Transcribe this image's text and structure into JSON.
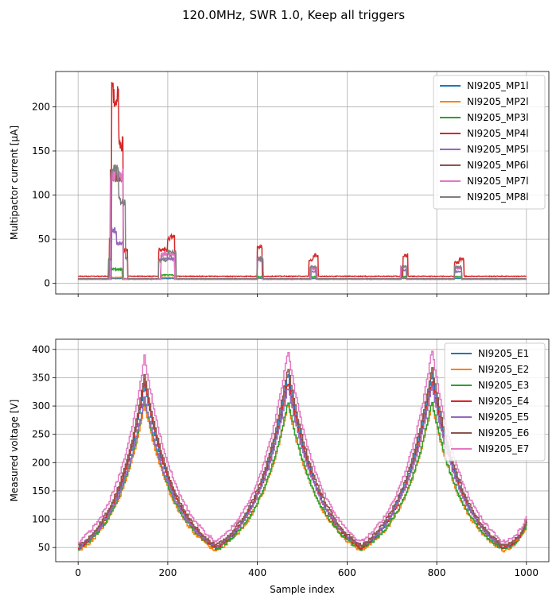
{
  "figure": {
    "title": "120.0MHz, SWR 1.0, Keep all triggers"
  },
  "chart_data": [
    {
      "type": "line",
      "xlabel": "",
      "ylabel": "Multipactor current [$\\mu$A]",
      "ylabel_display": "Multipactor current [μA]",
      "xlim": [
        -50,
        1050
      ],
      "ylim": [
        -12,
        240
      ],
      "xticks": [
        0,
        200,
        400,
        600,
        800,
        1000
      ],
      "xtick_labels_visible": false,
      "yticks": [
        0,
        50,
        100,
        150,
        200
      ],
      "grid": true,
      "legend_position": "top-right",
      "series": [
        {
          "name": "NI9205_MP1l",
          "color": "#1f77b4",
          "baseline": 5,
          "bursts": [
            [
              68,
              98,
              6
            ],
            [
              185,
              215,
              6
            ],
            [
              400,
              412,
              6
            ],
            [
              520,
              532,
              6
            ],
            [
              720,
              732,
              6
            ],
            [
              840,
              855,
              6
            ]
          ]
        },
        {
          "name": "NI9205_MP2l",
          "color": "#ff7f0e",
          "baseline": 5,
          "bursts": [
            [
              68,
              98,
              7
            ],
            [
              185,
              215,
              7
            ],
            [
              400,
              412,
              7
            ],
            [
              520,
              532,
              7
            ],
            [
              720,
              732,
              7
            ],
            [
              840,
              855,
              7
            ]
          ]
        },
        {
          "name": "NI9205_MP3l",
          "color": "#2ca02c",
          "baseline": 5,
          "bursts": [
            [
              68,
              98,
              17
            ],
            [
              185,
              215,
              10
            ],
            [
              400,
              412,
              8
            ],
            [
              520,
              532,
              8
            ],
            [
              720,
              732,
              8
            ],
            [
              840,
              855,
              8
            ]
          ]
        },
        {
          "name": "NI9205_MP4l",
          "color": "#d62728",
          "baseline": 8,
          "bursts": [
            [
              70,
              75,
              52
            ],
            [
              75,
              90,
              228
            ],
            [
              90,
              100,
              170
            ],
            [
              100,
              110,
              40
            ],
            [
              180,
              200,
              40
            ],
            [
              200,
              215,
              55
            ],
            [
              400,
              410,
              44
            ],
            [
              515,
              525,
              28
            ],
            [
              525,
              535,
              34
            ],
            [
              725,
              735,
              34
            ],
            [
              840,
              850,
              25
            ],
            [
              850,
              860,
              29
            ]
          ]
        },
        {
          "name": "NI9205_MP5l",
          "color": "#9467bd",
          "baseline": 5,
          "bursts": [
            [
              75,
              85,
              64
            ],
            [
              85,
              100,
              48
            ],
            [
              185,
              215,
              30
            ],
            [
              400,
              412,
              28
            ],
            [
              520,
              532,
              14
            ],
            [
              720,
              732,
              16
            ],
            [
              840,
              855,
              14
            ]
          ]
        },
        {
          "name": "NI9205_MP6l",
          "color": "#8c564b",
          "baseline": 5,
          "bursts": [
            [
              72,
              100,
              130
            ],
            [
              185,
              215,
              35
            ],
            [
              400,
              412,
              30
            ],
            [
              520,
              532,
              18
            ],
            [
              720,
              732,
              20
            ],
            [
              840,
              855,
              18
            ]
          ]
        },
        {
          "name": "NI9205_MP7l",
          "color": "#e377c2",
          "baseline": 5,
          "bursts": [
            [
              72,
              100,
              130
            ],
            [
              185,
              215,
              35
            ],
            [
              400,
              412,
              30
            ],
            [
              520,
              532,
              18
            ],
            [
              720,
              732,
              20
            ],
            [
              840,
              855,
              18
            ]
          ]
        },
        {
          "name": "NI9205_MP8l",
          "color": "#7f7f7f",
          "baseline": 5,
          "bursts": [
            [
              68,
              75,
              30
            ],
            [
              75,
              90,
              135
            ],
            [
              90,
              105,
              100
            ],
            [
              105,
              110,
              30
            ],
            [
              180,
              200,
              28
            ],
            [
              200,
              218,
              38
            ],
            [
              400,
              412,
              30
            ],
            [
              518,
              530,
              20
            ],
            [
              722,
              732,
              20
            ],
            [
              840,
              855,
              20
            ]
          ]
        }
      ]
    },
    {
      "type": "line",
      "xlabel": "Sample index",
      "ylabel": "Measured voltage [V]",
      "xlim": [
        -50,
        1050
      ],
      "ylim": [
        25,
        418
      ],
      "xticks": [
        0,
        200,
        400,
        600,
        800,
        1000
      ],
      "yticks": [
        50,
        100,
        150,
        200,
        250,
        300,
        350,
        400
      ],
      "grid": true,
      "legend_position": "top-right",
      "valleys_x": [
        0,
        307,
        630,
        948,
        1000
      ],
      "peaks_x": [
        147,
        467,
        788
      ],
      "series": [
        {
          "name": "NI9205_E1",
          "color": "#1f77b4",
          "min": 48,
          "peaks": [
            340,
            360,
            360
          ]
        },
        {
          "name": "NI9205_E2",
          "color": "#ff7f0e",
          "min": 45,
          "peaks": [
            305,
            305,
            307
          ]
        },
        {
          "name": "NI9205_E3",
          "color": "#2ca02c",
          "min": 47,
          "peaks": [
            313,
            308,
            310
          ]
        },
        {
          "name": "NI9205_E4",
          "color": "#d62728",
          "min": 50,
          "peaks": [
            347,
            345,
            345
          ]
        },
        {
          "name": "NI9205_E5",
          "color": "#9467bd",
          "min": 52,
          "peaks": [
            315,
            335,
            337
          ]
        },
        {
          "name": "NI9205_E6",
          "color": "#8c564b",
          "min": 53,
          "peaks": [
            355,
            370,
            370
          ]
        },
        {
          "name": "NI9205_E7",
          "color": "#e377c2",
          "min": 60,
          "peaks": [
            388,
            400,
            400
          ]
        }
      ]
    }
  ]
}
